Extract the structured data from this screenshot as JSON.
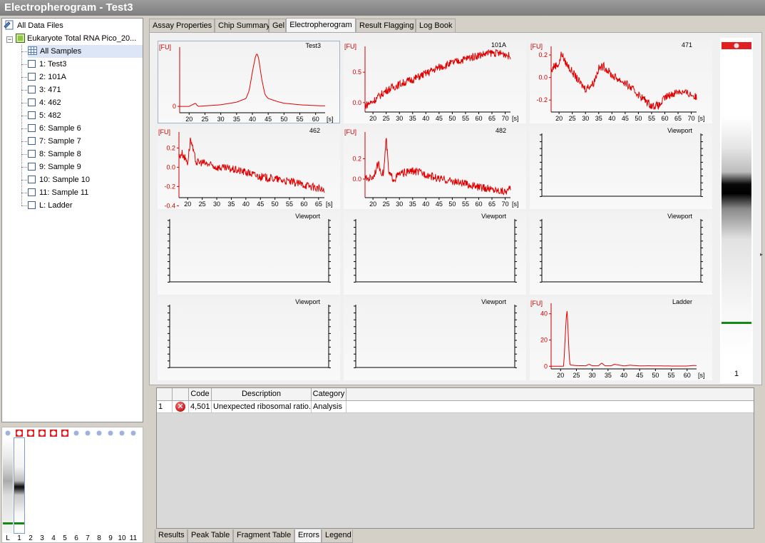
{
  "window": {
    "title": "Electropherogram - Test3"
  },
  "tree": {
    "root": "All Data Files",
    "file": "Eukaryote Total RNA Pico_20...",
    "items": [
      "All Samples",
      "1: Test3",
      "2: 101A",
      "3: 471",
      "4: 462",
      "5: 482",
      "6: Sample 6",
      "7: Sample 7",
      "8: Sample 8",
      "9: Sample 9",
      "10: Sample 10",
      "11: Sample 11",
      "L: Ladder"
    ]
  },
  "tabs": [
    "Assay Properties",
    "Chip Summary",
    "Gel",
    "Electropherogram",
    "Result Flagging",
    "Log Book"
  ],
  "active_tab": "Electropherogram",
  "plots": [
    {
      "title": "Test3",
      "fu_label": "[FU]",
      "x_unit": "[s]",
      "x_ticks": [
        "20",
        "25",
        "30",
        "35",
        "40",
        "45",
        "50",
        "55",
        "60"
      ],
      "y_ticks": [
        "0"
      ]
    },
    {
      "title": "101A",
      "fu_label": "[FU]",
      "x_unit": "[s]",
      "x_ticks": [
        "20",
        "25",
        "30",
        "35",
        "40",
        "45",
        "50",
        "55",
        "60",
        "65",
        "70"
      ],
      "y_ticks": [
        "0.5",
        "0.0"
      ]
    },
    {
      "title": "471",
      "fu_label": "[FU]",
      "x_unit": "[s]",
      "x_ticks": [
        "20",
        "25",
        "30",
        "35",
        "40",
        "45",
        "50",
        "55",
        "60",
        "65",
        "70"
      ],
      "y_ticks": [
        "0.2",
        "0.0",
        "-0.2"
      ]
    },
    {
      "title": "462",
      "fu_label": "[FU]",
      "x_unit": "[s]",
      "x_ticks": [
        "20",
        "25",
        "30",
        "35",
        "40",
        "45",
        "50",
        "55",
        "60",
        "65"
      ],
      "y_ticks": [
        "0.2",
        "0.0",
        "-0.2",
        "-0.4"
      ]
    },
    {
      "title": "482",
      "fu_label": "[FU]",
      "x_unit": "[s]",
      "x_ticks": [
        "20",
        "25",
        "30",
        "35",
        "40",
        "45",
        "50",
        "55",
        "60",
        "65",
        "70"
      ],
      "y_ticks": [
        "0.2",
        "0.0"
      ]
    },
    {
      "title": "Viewport"
    },
    {
      "title": "Viewport"
    },
    {
      "title": "Viewport"
    },
    {
      "title": "Viewport"
    },
    {
      "title": "Viewport"
    },
    {
      "title": "Viewport"
    },
    {
      "title": "Ladder",
      "fu_label": "[FU]",
      "x_unit": "[s]",
      "x_ticks": [
        "20",
        "25",
        "30",
        "35",
        "40",
        "45",
        "50",
        "55",
        "60"
      ],
      "y_ticks": [
        "40",
        "20",
        "0"
      ]
    }
  ],
  "chart_data": [
    {
      "type": "line",
      "title": "Test3",
      "ylabel": "[FU]",
      "xlabel": "[s]",
      "xlim": [
        17,
        63
      ],
      "series": [
        {
          "x": [
            17,
            20,
            22,
            22.5,
            23,
            25,
            30,
            35,
            38,
            39,
            40,
            41,
            41.5,
            42,
            43,
            44,
            45,
            46,
            48,
            50,
            55,
            60,
            63
          ],
          "y": [
            0,
            0,
            0.6,
            0.2,
            0,
            0.1,
            0.3,
            0.8,
            1.5,
            3,
            6.5,
            9.5,
            10,
            9,
            5,
            2.2,
            1.5,
            1.3,
            0.9,
            0.6,
            0.3,
            0.15,
            0.1
          ]
        }
      ]
    },
    {
      "type": "line",
      "title": "101A",
      "ylabel": "[FU]",
      "xlabel": "[s]",
      "xlim": [
        17,
        72
      ],
      "series": [
        {
          "x": [
            17,
            20,
            25,
            30,
            35,
            40,
            45,
            50,
            55,
            60,
            65,
            70,
            72
          ],
          "y": [
            -0.05,
            0.02,
            0.2,
            0.3,
            0.38,
            0.48,
            0.58,
            0.65,
            0.72,
            0.78,
            0.82,
            0.8,
            0.75
          ]
        }
      ]
    },
    {
      "type": "line",
      "title": "471",
      "ylabel": "[FU]",
      "xlabel": "[s]",
      "xlim": [
        17,
        72
      ],
      "series": [
        {
          "x": [
            17,
            18,
            20,
            21,
            22,
            25,
            28,
            30,
            33,
            35,
            37,
            40,
            45,
            50,
            55,
            58,
            60,
            65,
            70,
            72
          ],
          "y": [
            0.05,
            0.1,
            0.12,
            0.22,
            0.15,
            0.05,
            -0.05,
            -0.1,
            -0.05,
            0.08,
            0.1,
            0.02,
            -0.05,
            -0.15,
            -0.25,
            -0.25,
            -0.18,
            -0.12,
            -0.15,
            -0.18
          ]
        }
      ]
    },
    {
      "type": "line",
      "title": "462",
      "ylabel": "[FU]",
      "xlabel": "[s]",
      "xlim": [
        17,
        67
      ],
      "series": [
        {
          "x": [
            17,
            18,
            20,
            21,
            22,
            23,
            25,
            30,
            35,
            40,
            45,
            50,
            55,
            60,
            65,
            67
          ],
          "y": [
            0.1,
            0.15,
            0.05,
            0.3,
            0.15,
            0.05,
            0.05,
            0.0,
            -0.02,
            -0.05,
            -0.1,
            -0.12,
            -0.15,
            -0.18,
            -0.22,
            -0.25
          ]
        }
      ]
    },
    {
      "type": "line",
      "title": "482",
      "ylabel": "[FU]",
      "xlabel": "[s]",
      "xlim": [
        17,
        72
      ],
      "series": [
        {
          "x": [
            17,
            20,
            22,
            23,
            24,
            25,
            26,
            28,
            30,
            35,
            40,
            45,
            50,
            55,
            60,
            65,
            70,
            72
          ],
          "y": [
            0.0,
            0.02,
            0.15,
            0.08,
            0.05,
            0.4,
            0.05,
            0.0,
            0.05,
            0.08,
            0.05,
            0.0,
            -0.02,
            -0.05,
            -0.08,
            -0.1,
            -0.12,
            -0.1
          ]
        }
      ]
    },
    {
      "type": "line",
      "title": "Ladder",
      "ylabel": "[FU]",
      "xlabel": "[s]",
      "xlim": [
        17,
        63
      ],
      "ylim": [
        -2,
        48
      ],
      "series": [
        {
          "x": [
            17,
            21,
            21.5,
            22,
            22.3,
            22.7,
            23,
            25,
            28,
            29,
            30,
            32,
            33,
            34,
            36,
            37,
            40,
            42,
            45,
            48,
            50,
            55,
            58,
            60,
            62,
            63
          ],
          "y": [
            0,
            0,
            25,
            45,
            30,
            8,
            1,
            0.5,
            0.4,
            1.5,
            0.4,
            0.4,
            2.5,
            0.4,
            0.4,
            1.5,
            0.3,
            0.8,
            0.3,
            0.4,
            0.3,
            0.2,
            0.2,
            0.2,
            0.6,
            0.5
          ]
        }
      ]
    }
  ],
  "gel": {
    "lane_labels": [
      "L",
      "1",
      "2",
      "3",
      "4",
      "5",
      "6",
      "7",
      "8",
      "9",
      "10",
      "11"
    ],
    "lane_number": "1",
    "colors": {
      "flag": "#e02020",
      "ladder_marker": "#138a13",
      "dot": "#9fb3e0"
    }
  },
  "errors_table": {
    "headers": [
      "Code",
      "Description",
      "Category"
    ],
    "rows": [
      {
        "index": "1",
        "icon": "error-icon",
        "code": "4,501",
        "description": "Unexpected ribosomal ratio.",
        "category": "Analysis"
      }
    ]
  },
  "bottom_tabs": [
    "Results",
    "Peak Table",
    "Fragment Table",
    "Errors",
    "Legend"
  ],
  "active_bottom_tab": "Errors"
}
